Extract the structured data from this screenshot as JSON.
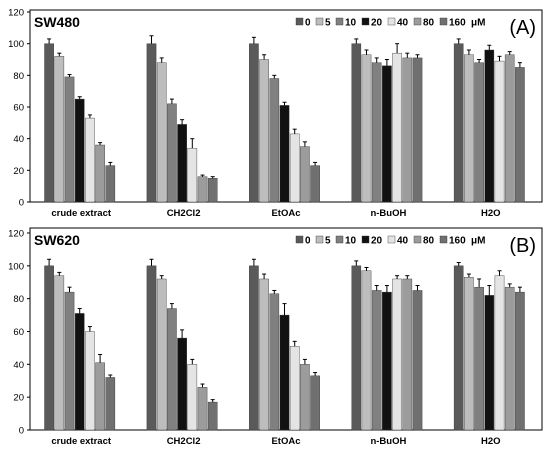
{
  "chart_data": [
    {
      "type": "bar",
      "panel_label": "(A)",
      "cell_line": "SW480",
      "categories": [
        "crude extract",
        "CH2Cl2",
        "EtOAc",
        "n-BuOH",
        "H2O"
      ],
      "ylim": [
        0,
        120
      ],
      "yticks": [
        0,
        20,
        40,
        60,
        80,
        100,
        120
      ],
      "legend_unit": "μM",
      "series": [
        {
          "name": "0",
          "color": "#5a5a5a",
          "values": [
            100,
            100,
            100,
            100,
            100
          ],
          "errors": [
            3,
            5,
            4,
            3,
            3
          ]
        },
        {
          "name": "5",
          "color": "#bdbdbd",
          "values": [
            92,
            88,
            90,
            93,
            93
          ],
          "errors": [
            2,
            3,
            3,
            3,
            3
          ]
        },
        {
          "name": "10",
          "color": "#808080",
          "values": [
            79,
            62,
            78,
            88,
            88
          ],
          "errors": [
            1.5,
            3,
            2,
            3,
            2
          ]
        },
        {
          "name": "20",
          "color": "#111111",
          "values": [
            65,
            49,
            61,
            86,
            96
          ],
          "errors": [
            1.5,
            3,
            2,
            4,
            3
          ]
        },
        {
          "name": "40",
          "color": "#e4e4e4",
          "values": [
            53,
            34,
            43,
            94,
            89
          ],
          "errors": [
            2,
            6,
            3,
            6,
            3
          ]
        },
        {
          "name": "80",
          "color": "#9c9c9c",
          "values": [
            36,
            16,
            35,
            91,
            93
          ],
          "errors": [
            1.5,
            1,
            3,
            3,
            2
          ]
        },
        {
          "name": "160",
          "color": "#707070",
          "values": [
            23,
            15,
            23,
            91,
            85
          ],
          "errors": [
            2,
            1,
            2,
            2,
            3
          ]
        }
      ]
    },
    {
      "type": "bar",
      "panel_label": "(B)",
      "cell_line": "SW620",
      "categories": [
        "crude extract",
        "CH2Cl2",
        "EtOAc",
        "n-BuOH",
        "H2O"
      ],
      "ylim": [
        0,
        120
      ],
      "yticks": [
        0,
        20,
        40,
        60,
        80,
        100,
        120
      ],
      "legend_unit": "μM",
      "series": [
        {
          "name": "0",
          "color": "#5a5a5a",
          "values": [
            100,
            100,
            100,
            100,
            100
          ],
          "errors": [
            4,
            4,
            4,
            3,
            2
          ]
        },
        {
          "name": "5",
          "color": "#bdbdbd",
          "values": [
            94,
            92,
            92,
            97,
            93
          ],
          "errors": [
            2,
            2,
            3,
            2,
            2
          ]
        },
        {
          "name": "10",
          "color": "#808080",
          "values": [
            84,
            74,
            83,
            85,
            87
          ],
          "errors": [
            3,
            3,
            2,
            3,
            5
          ]
        },
        {
          "name": "20",
          "color": "#111111",
          "values": [
            71,
            56,
            70,
            84,
            82
          ],
          "errors": [
            3,
            5,
            7,
            4,
            6
          ]
        },
        {
          "name": "40",
          "color": "#e4e4e4",
          "values": [
            60,
            40,
            51,
            92,
            94
          ],
          "errors": [
            3,
            3,
            3,
            2,
            3
          ]
        },
        {
          "name": "80",
          "color": "#9c9c9c",
          "values": [
            41,
            26,
            40,
            92,
            87
          ],
          "errors": [
            5,
            2,
            3,
            2,
            2
          ]
        },
        {
          "name": "160",
          "color": "#707070",
          "values": [
            32,
            17,
            33,
            85,
            84
          ],
          "errors": [
            1.5,
            1.5,
            2,
            3,
            3
          ]
        }
      ]
    }
  ]
}
